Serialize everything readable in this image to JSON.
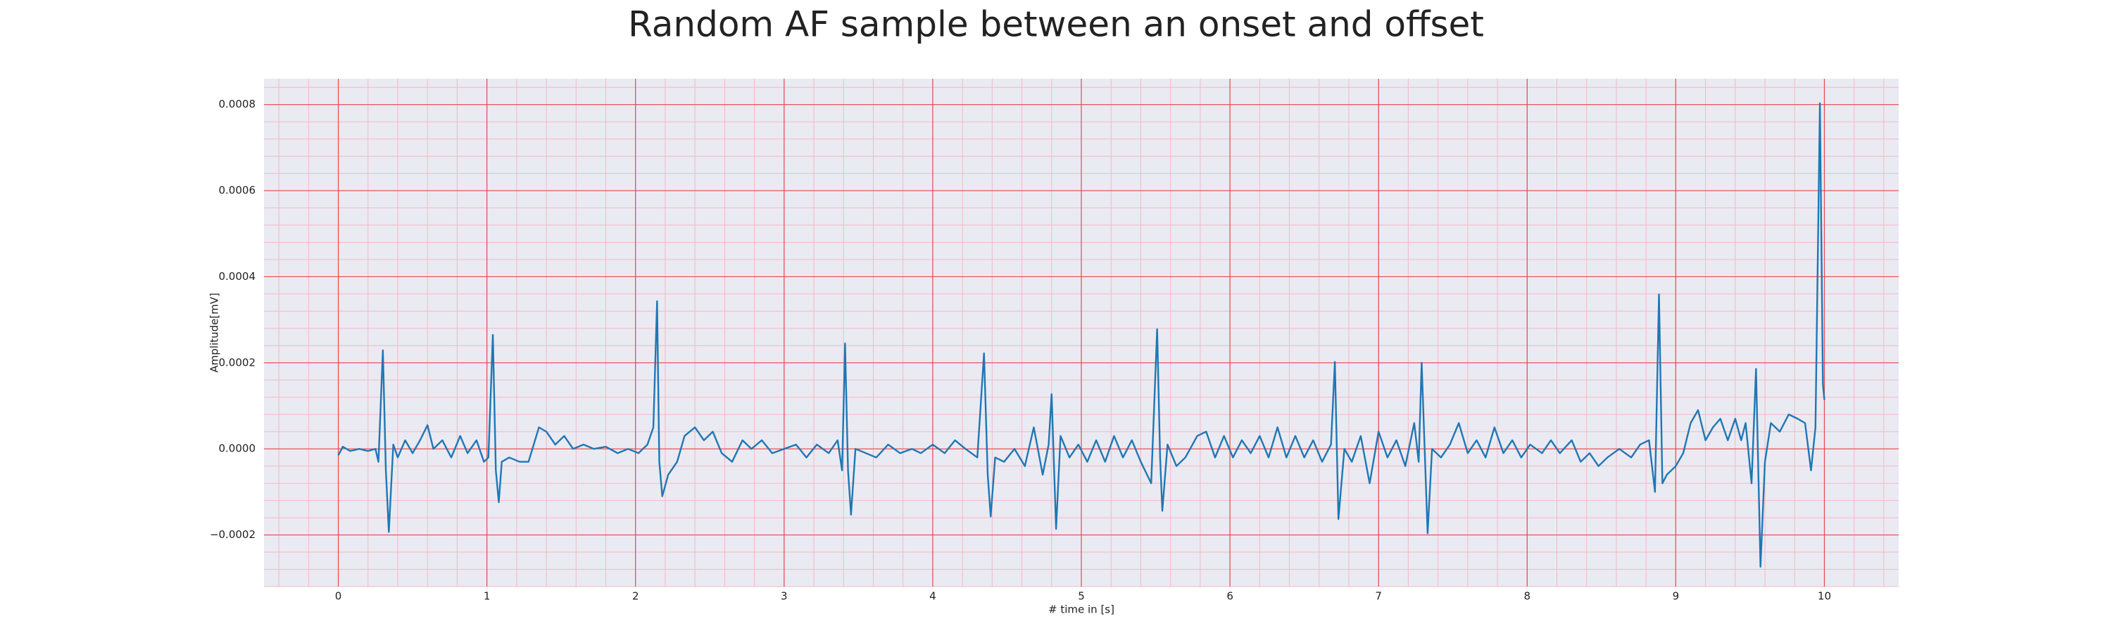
{
  "chart_data": {
    "type": "line",
    "title": "Random AF sample between an onset and offset",
    "xlabel": "# time in [s]",
    "ylabel": "Amplitude[mV]",
    "color": "#1f77b4",
    "grid": true,
    "minor_grid": true,
    "xlim": [
      -0.5,
      10.5
    ],
    "ylim": [
      -0.00032,
      0.00086
    ],
    "xticks": [
      0,
      1,
      2,
      3,
      4,
      5,
      6,
      7,
      8,
      9,
      10
    ],
    "yticks": [
      {
        "value": -0.0002,
        "label": "−0.0002"
      },
      {
        "value": 0,
        "label": "0.0000"
      },
      {
        "value": 0.0002,
        "label": "0.0002"
      },
      {
        "value": 0.0004,
        "label": "0.0004"
      },
      {
        "value": 0.0006,
        "label": "0.0006"
      },
      {
        "value": 0.0008,
        "label": "0.0008"
      }
    ],
    "x": [
      0.0,
      0.03,
      0.08,
      0.14,
      0.2,
      0.25,
      0.27,
      0.3,
      0.32,
      0.34,
      0.37,
      0.4,
      0.45,
      0.5,
      0.55,
      0.6,
      0.64,
      0.7,
      0.76,
      0.82,
      0.87,
      0.93,
      0.98,
      1.01,
      1.04,
      1.06,
      1.08,
      1.1,
      1.15,
      1.22,
      1.28,
      1.35,
      1.4,
      1.46,
      1.52,
      1.58,
      1.65,
      1.72,
      1.8,
      1.88,
      1.95,
      2.02,
      2.08,
      2.12,
      2.145,
      2.16,
      2.18,
      2.22,
      2.28,
      2.33,
      2.4,
      2.46,
      2.52,
      2.58,
      2.65,
      2.72,
      2.78,
      2.85,
      2.92,
      3.0,
      3.08,
      3.15,
      3.22,
      3.3,
      3.36,
      3.39,
      3.41,
      3.43,
      3.45,
      3.48,
      3.55,
      3.62,
      3.7,
      3.78,
      3.86,
      3.92,
      4.0,
      4.08,
      4.15,
      4.22,
      4.3,
      4.345,
      4.37,
      4.39,
      4.42,
      4.48,
      4.55,
      4.62,
      4.68,
      4.74,
      4.78,
      4.8,
      4.83,
      4.86,
      4.92,
      4.98,
      5.04,
      5.1,
      5.16,
      5.22,
      5.28,
      5.34,
      5.4,
      5.47,
      5.51,
      5.53,
      5.545,
      5.58,
      5.64,
      5.7,
      5.78,
      5.84,
      5.9,
      5.96,
      6.02,
      6.08,
      6.14,
      6.2,
      6.26,
      6.32,
      6.38,
      6.44,
      6.5,
      6.56,
      6.62,
      6.68,
      6.706,
      6.73,
      6.77,
      6.82,
      6.88,
      6.94,
      7.0,
      7.06,
      7.12,
      7.18,
      7.24,
      7.27,
      7.29,
      7.33,
      7.36,
      7.42,
      7.48,
      7.54,
      7.6,
      7.66,
      7.72,
      7.78,
      7.84,
      7.9,
      7.96,
      8.02,
      8.1,
      8.16,
      8.22,
      8.3,
      8.36,
      8.42,
      8.48,
      8.54,
      8.62,
      8.7,
      8.76,
      8.82,
      8.86,
      8.887,
      8.91,
      8.94,
      9.0,
      9.05,
      9.1,
      9.15,
      9.2,
      9.25,
      9.3,
      9.35,
      9.4,
      9.44,
      9.47,
      9.51,
      9.54,
      9.57,
      9.6,
      9.64,
      9.7,
      9.76,
      9.82,
      9.87,
      9.91,
      9.94,
      9.97,
      9.99,
      10.0
    ],
    "values": [
      -1.5e-05,
      5e-06,
      -5e-06,
      0,
      -5e-06,
      0,
      -3e-05,
      0.000229,
      -5e-05,
      -0.000193,
      1e-05,
      -2e-05,
      2e-05,
      -1e-05,
      2e-05,
      5.5e-05,
      0,
      2e-05,
      -2e-05,
      3e-05,
      -1e-05,
      2e-05,
      -3e-05,
      -2e-05,
      0.000265,
      -5e-05,
      -0.000124,
      -3e-05,
      -2e-05,
      -3e-05,
      -3e-05,
      5e-05,
      4e-05,
      1e-05,
      3e-05,
      0,
      1e-05,
      0,
      5e-06,
      -1e-05,
      0,
      -1e-05,
      1e-05,
      5e-05,
      0.000343,
      -3e-05,
      -0.00011,
      -6e-05,
      -3e-05,
      3e-05,
      5e-05,
      2e-05,
      4e-05,
      -1e-05,
      -3e-05,
      2e-05,
      0,
      2e-05,
      -1e-05,
      0,
      1e-05,
      -2e-05,
      1e-05,
      -1e-05,
      2e-05,
      -5e-05,
      0.000245,
      -5e-05,
      -0.000153,
      0,
      -1e-05,
      -2e-05,
      1e-05,
      -1e-05,
      0,
      -1e-05,
      1e-05,
      -1e-05,
      2e-05,
      0,
      -2e-05,
      0.000222,
      -6e-05,
      -0.000157,
      -2e-05,
      -3e-05,
      0,
      -4e-05,
      5e-05,
      -6e-05,
      1e-05,
      0.000127,
      -0.000186,
      3e-05,
      -2e-05,
      1e-05,
      -3e-05,
      2e-05,
      -3e-05,
      3e-05,
      -2e-05,
      2e-05,
      -3e-05,
      -8e-05,
      0.000278,
      -2e-05,
      -0.000144,
      1e-05,
      -4e-05,
      -2e-05,
      3e-05,
      4e-05,
      -2e-05,
      3e-05,
      -2e-05,
      2e-05,
      -1e-05,
      3e-05,
      -2e-05,
      5e-05,
      -2e-05,
      3e-05,
      -2e-05,
      2e-05,
      -3e-05,
      1e-05,
      0.000202,
      -0.000163,
      0,
      -3e-05,
      3e-05,
      -8e-05,
      4e-05,
      -2e-05,
      2e-05,
      -4e-05,
      6e-05,
      -3e-05,
      0.0002,
      -0.000196,
      0,
      -2e-05,
      1e-05,
      6e-05,
      -1e-05,
      2e-05,
      -2e-05,
      5e-05,
      -1e-05,
      2e-05,
      -2e-05,
      1e-05,
      -1e-05,
      2e-05,
      -1e-05,
      2e-05,
      -3e-05,
      -1e-05,
      -4e-05,
      -2e-05,
      0,
      -2e-05,
      1e-05,
      2e-05,
      -0.0001,
      0.000359,
      -8e-05,
      -6e-05,
      -4e-05,
      -1e-05,
      6e-05,
      9e-05,
      2e-05,
      5e-05,
      7e-05,
      2e-05,
      7e-05,
      2e-05,
      6e-05,
      -8e-05,
      0.000186,
      -0.000274,
      -3e-05,
      6e-05,
      4e-05,
      8e-05,
      7e-05,
      6e-05,
      -5e-05,
      5e-05,
      0.000803,
      0.00015,
      0.000114
    ]
  }
}
